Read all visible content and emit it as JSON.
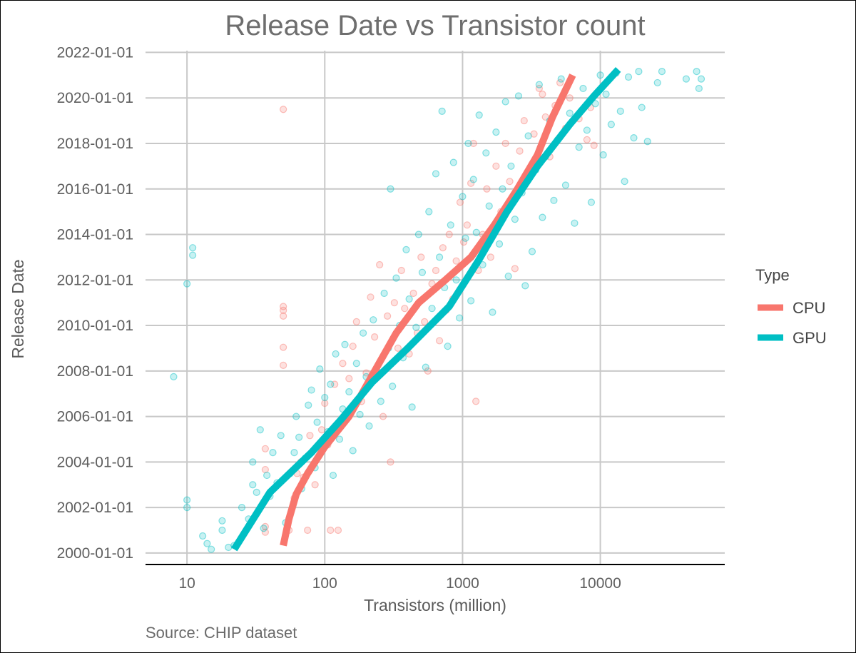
{
  "chart_data": {
    "type": "scatter",
    "title": "Release Date vs Transistor count",
    "xlabel": "Transistors (million)",
    "ylabel": "Release Date",
    "caption": "Source: CHIP dataset",
    "x_scale": "log10",
    "xlim": [
      5,
      80000
    ],
    "x_ticks": [
      10,
      100,
      1000,
      10000
    ],
    "x_tick_labels": [
      "10",
      "100",
      "1000",
      "10000"
    ],
    "ylim": [
      "1999-07-01",
      "2022-06-15"
    ],
    "y_ticks": [
      "2000-01-01",
      "2002-01-01",
      "2004-01-01",
      "2006-01-01",
      "2008-01-01",
      "2010-01-01",
      "2012-01-01",
      "2014-01-01",
      "2016-01-01",
      "2018-01-01",
      "2020-01-01",
      "2022-01-01"
    ],
    "y_tick_labels": [
      "2000-01-01",
      "2002-01-01",
      "2004-01-01",
      "2006-01-01",
      "2008-01-01",
      "2010-01-01",
      "2012-01-01",
      "2014-01-01",
      "2016-01-01",
      "2018-01-01",
      "2020-01-01",
      "2022-01-01"
    ],
    "grid": true,
    "legend": {
      "title": "Type",
      "position": "right",
      "entries": [
        {
          "label": "CPU",
          "color": "#F8766D"
        },
        {
          "label": "GPU",
          "color": "#00BFC4"
        }
      ]
    },
    "series": [
      {
        "name": "CPU",
        "color": "#F8766D",
        "points": [
          [
            50,
            "2019-07-01"
          ],
          [
            50,
            "2010-11-01"
          ],
          [
            50,
            "2010-09-01"
          ],
          [
            50,
            "2010-06-01"
          ],
          [
            50,
            "2009-01-15"
          ],
          [
            50,
            "2008-04-01"
          ],
          [
            37,
            "2004-08-01"
          ],
          [
            37,
            "2003-09-01"
          ],
          [
            37,
            "2002-05-01"
          ],
          [
            37,
            "2001-03-01"
          ],
          [
            37,
            "2000-12-01"
          ],
          [
            55,
            "2001-01-01"
          ],
          [
            60,
            "2002-06-01"
          ],
          [
            63,
            "2003-07-01"
          ],
          [
            67,
            "2004-01-01"
          ],
          [
            70,
            "2003-05-01"
          ],
          [
            75,
            "2001-01-01"
          ],
          [
            78,
            "2005-03-01"
          ],
          [
            85,
            "2003-01-01"
          ],
          [
            90,
            "2004-09-01"
          ],
          [
            95,
            "2005-06-01"
          ],
          [
            100,
            "2006-08-01"
          ],
          [
            105,
            "2004-10-01"
          ],
          [
            110,
            "2001-01-01"
          ],
          [
            118,
            "2007-06-01"
          ],
          [
            125,
            "2001-01-01"
          ],
          [
            135,
            "2008-05-01"
          ],
          [
            150,
            "2007-09-01"
          ],
          [
            160,
            "2009-02-01"
          ],
          [
            170,
            "2010-03-01"
          ],
          [
            185,
            "2006-09-01"
          ],
          [
            200,
            "2007-12-01"
          ],
          [
            215,
            "2011-04-01"
          ],
          [
            230,
            "2009-07-01"
          ],
          [
            250,
            "2012-09-01"
          ],
          [
            265,
            "2006-01-01"
          ],
          [
            285,
            "2010-06-01"
          ],
          [
            300,
            "2004-01-01"
          ],
          [
            320,
            "2011-01-01"
          ],
          [
            340,
            "2009-01-01"
          ],
          [
            360,
            "2012-06-01"
          ],
          [
            380,
            "2010-10-01"
          ],
          [
            410,
            "2008-10-01"
          ],
          [
            440,
            "2011-06-01"
          ],
          [
            470,
            "2009-09-01"
          ],
          [
            500,
            "2013-01-01"
          ],
          [
            530,
            "2010-03-01"
          ],
          [
            560,
            "2008-01-01"
          ],
          [
            600,
            "2011-11-01"
          ],
          [
            640,
            "2012-06-01"
          ],
          [
            680,
            "2009-05-01"
          ],
          [
            720,
            "2013-06-01"
          ],
          [
            760,
            "2010-09-01"
          ],
          [
            800,
            "2014-01-01"
          ],
          [
            850,
            "2011-03-01"
          ],
          [
            900,
            "2012-11-01"
          ],
          [
            960,
            "2015-06-01"
          ],
          [
            1020,
            "2013-09-01"
          ],
          [
            1080,
            "2014-06-01"
          ],
          [
            1150,
            "2016-04-01"
          ],
          [
            1200,
            "2018-01-01"
          ],
          [
            1250,
            "2006-09-01"
          ],
          [
            1300,
            "2012-06-01"
          ],
          [
            1400,
            "2014-01-01"
          ],
          [
            1500,
            "2016-01-01"
          ],
          [
            1600,
            "2013-01-01"
          ],
          [
            1750,
            "2017-01-01"
          ],
          [
            1900,
            "2015-01-01"
          ],
          [
            2050,
            "2018-01-01"
          ],
          [
            2200,
            "2016-05-01"
          ],
          [
            2400,
            "2012-07-01"
          ],
          [
            2600,
            "2017-09-01"
          ],
          [
            2800,
            "2019-01-01"
          ],
          [
            3000,
            "2016-09-01"
          ],
          [
            3300,
            "2018-06-01"
          ],
          [
            3600,
            "2020-06-01"
          ],
          [
            3800,
            "2020-03-01"
          ],
          [
            4000,
            "2019-03-01"
          ],
          [
            4300,
            "2017-06-01"
          ],
          [
            4700,
            "2019-09-01"
          ],
          [
            5100,
            "2020-09-01"
          ],
          [
            5600,
            "2018-09-01"
          ],
          [
            6000,
            "2020-01-01"
          ],
          [
            7000,
            "2019-02-01"
          ],
          [
            8000,
            "2018-03-01"
          ],
          [
            8500,
            "2019-08-01"
          ],
          [
            9000,
            "2017-12-01"
          ]
        ]
      },
      {
        "name": "GPU",
        "color": "#00BFC4",
        "points": [
          [
            8,
            "2007-10-01"
          ],
          [
            10,
            "2002-05-01"
          ],
          [
            10,
            "2002-01-01"
          ],
          [
            10,
            "2011-11-01"
          ],
          [
            11,
            "2013-06-01"
          ],
          [
            11,
            "2013-02-01"
          ],
          [
            13,
            "2000-10-01"
          ],
          [
            14,
            "2000-06-01"
          ],
          [
            15,
            "2000-03-01"
          ],
          [
            18,
            "2001-01-01"
          ],
          [
            18,
            "2001-06-01"
          ],
          [
            20,
            "2000-04-01"
          ],
          [
            22,
            "2000-05-01"
          ],
          [
            25,
            "2002-01-01"
          ],
          [
            28,
            "2001-07-01"
          ],
          [
            30,
            "2003-01-01"
          ],
          [
            30,
            "2004-01-01"
          ],
          [
            32,
            "2002-09-01"
          ],
          [
            34,
            "2005-06-01"
          ],
          [
            36,
            "2001-02-01"
          ],
          [
            38,
            "2003-06-01"
          ],
          [
            40,
            "2002-07-01"
          ],
          [
            42,
            "2004-06-01"
          ],
          [
            45,
            "2003-02-01"
          ],
          [
            48,
            "2005-03-01"
          ],
          [
            52,
            "2001-05-01"
          ],
          [
            56,
            "2003-07-01"
          ],
          [
            60,
            "2004-06-01"
          ],
          [
            62,
            "2006-01-01"
          ],
          [
            65,
            "2005-02-01"
          ],
          [
            68,
            "2002-11-01"
          ],
          [
            72,
            "2004-03-01"
          ],
          [
            76,
            "2006-07-01"
          ],
          [
            80,
            "2007-03-01"
          ],
          [
            85,
            "2003-10-01"
          ],
          [
            88,
            "2005-10-01"
          ],
          [
            92,
            "2008-02-01"
          ],
          [
            96,
            "2004-09-01"
          ],
          [
            100,
            "2006-11-01"
          ],
          [
            105,
            "2005-05-01"
          ],
          [
            110,
            "2007-06-01"
          ],
          [
            115,
            "2003-06-01"
          ],
          [
            120,
            "2008-10-01"
          ],
          [
            128,
            "2005-01-01"
          ],
          [
            135,
            "2006-05-01"
          ],
          [
            140,
            "2009-03-01"
          ],
          [
            150,
            "2007-02-01"
          ],
          [
            160,
            "2004-07-01"
          ],
          [
            170,
            "2008-05-01"
          ],
          [
            180,
            "2006-02-01"
          ],
          [
            190,
            "2009-09-01"
          ],
          [
            200,
            "2007-10-01"
          ],
          [
            210,
            "2005-08-01"
          ],
          [
            225,
            "2010-04-01"
          ],
          [
            240,
            "2008-01-01"
          ],
          [
            255,
            "2006-09-01"
          ],
          [
            270,
            "2011-06-01"
          ],
          [
            290,
            "2009-01-01"
          ],
          [
            300,
            "2016-01-01"
          ],
          [
            310,
            "2007-05-01"
          ],
          [
            330,
            "2012-02-01"
          ],
          [
            350,
            "2010-01-01"
          ],
          [
            370,
            "2008-08-01"
          ],
          [
            390,
            "2013-05-01"
          ],
          [
            410,
            "2011-03-01"
          ],
          [
            430,
            "2006-06-01"
          ],
          [
            460,
            "2009-12-01"
          ],
          [
            480,
            "2014-01-01"
          ],
          [
            510,
            "2012-05-01"
          ],
          [
            540,
            "2008-03-01"
          ],
          [
            570,
            "2015-01-01"
          ],
          [
            600,
            "2010-10-01"
          ],
          [
            640,
            "2016-09-01"
          ],
          [
            680,
            "2013-01-01"
          ],
          [
            710,
            "2019-06-01"
          ],
          [
            740,
            "2011-09-01"
          ],
          [
            780,
            "2009-02-01"
          ],
          [
            820,
            "2014-06-01"
          ],
          [
            860,
            "2017-03-01"
          ],
          [
            900,
            "2012-01-01"
          ],
          [
            950,
            "2010-05-01"
          ],
          [
            1000,
            "2015-09-01"
          ],
          [
            1050,
            "2013-11-01"
          ],
          [
            1100,
            "2018-01-01"
          ],
          [
            1150,
            "2011-02-01"
          ],
          [
            1200,
            "2016-06-01"
          ],
          [
            1260,
            "2014-02-01"
          ],
          [
            1320,
            "2019-04-01"
          ],
          [
            1400,
            "2012-09-01"
          ],
          [
            1480,
            "2017-08-01"
          ],
          [
            1560,
            "2015-04-01"
          ],
          [
            1650,
            "2010-08-01"
          ],
          [
            1750,
            "2018-07-01"
          ],
          [
            1850,
            "2013-08-01"
          ],
          [
            1950,
            "2016-01-01"
          ],
          [
            2050,
            "2019-11-01"
          ],
          [
            2150,
            "2012-03-01"
          ],
          [
            2250,
            "2017-01-01"
          ],
          [
            2400,
            "2014-09-01"
          ],
          [
            2550,
            "2020-02-01"
          ],
          [
            2700,
            "2015-11-01"
          ],
          [
            2850,
            "2011-10-01"
          ],
          [
            3000,
            "2018-05-01"
          ],
          [
            3200,
            "2013-04-01"
          ],
          [
            3400,
            "2016-11-01"
          ],
          [
            3600,
            "2020-08-01"
          ],
          [
            3800,
            "2014-10-01"
          ],
          [
            4000,
            "2017-06-01"
          ],
          [
            4300,
            "2019-01-01"
          ],
          [
            4600,
            "2015-07-01"
          ],
          [
            4900,
            "2018-03-01"
          ],
          [
            5200,
            "2020-11-01"
          ],
          [
            5600,
            "2016-03-01"
          ],
          [
            6000,
            "2019-05-01"
          ],
          [
            6500,
            "2014-07-01"
          ],
          [
            7000,
            "2017-11-01"
          ],
          [
            7500,
            "2020-06-01"
          ],
          [
            8000,
            "2018-08-01"
          ],
          [
            8600,
            "2015-06-01"
          ],
          [
            9200,
            "2019-10-01"
          ],
          [
            10000,
            "2021-01-01"
          ],
          [
            10500,
            "2017-07-01"
          ],
          [
            11000,
            "2020-03-01"
          ],
          [
            12000,
            "2018-11-01"
          ],
          [
            13000,
            "2021-02-01"
          ],
          [
            14000,
            "2019-06-01"
          ],
          [
            15000,
            "2016-05-01"
          ],
          [
            16000,
            "2020-12-01"
          ],
          [
            17500,
            "2018-04-01"
          ],
          [
            19000,
            "2021-03-01"
          ],
          [
            20000,
            "2019-08-01"
          ],
          [
            22000,
            "2018-02-01"
          ],
          [
            26000,
            "2020-09-01"
          ],
          [
            28000,
            "2021-03-01"
          ],
          [
            42000,
            "2020-11-01"
          ],
          [
            50000,
            "2021-03-01"
          ],
          [
            52000,
            "2020-06-01"
          ],
          [
            54000,
            "2020-11-01"
          ]
        ]
      }
    ],
    "trend_lines": [
      {
        "name": "CPU",
        "color": "#F8766D",
        "points": [
          [
            50,
            "2000-05-01"
          ],
          [
            55,
            "2001-07-01"
          ],
          [
            62,
            "2002-08-01"
          ],
          [
            75,
            "2003-07-01"
          ],
          [
            100,
            "2004-09-01"
          ],
          [
            150,
            "2006-01-01"
          ],
          [
            230,
            "2008-01-01"
          ],
          [
            330,
            "2009-09-01"
          ],
          [
            480,
            "2011-01-01"
          ],
          [
            750,
            "2012-01-01"
          ],
          [
            1150,
            "2013-01-01"
          ],
          [
            1700,
            "2014-06-01"
          ],
          [
            2500,
            "2016-01-01"
          ],
          [
            3500,
            "2017-07-01"
          ],
          [
            4500,
            "2019-03-01"
          ],
          [
            6300,
            "2021-01-01"
          ]
        ]
      },
      {
        "name": "GPU",
        "color": "#00BFC4",
        "points": [
          [
            22,
            "2000-03-01"
          ],
          [
            40,
            "2002-09-01"
          ],
          [
            80,
            "2004-06-01"
          ],
          [
            130,
            "2005-11-01"
          ],
          [
            220,
            "2007-07-01"
          ],
          [
            400,
            "2009-01-01"
          ],
          [
            800,
            "2010-11-01"
          ],
          [
            1300,
            "2012-11-01"
          ],
          [
            2100,
            "2015-01-01"
          ],
          [
            3500,
            "2017-01-01"
          ],
          [
            6000,
            "2018-11-01"
          ],
          [
            9000,
            "2020-02-01"
          ],
          [
            13500,
            "2021-04-01"
          ]
        ]
      }
    ]
  }
}
